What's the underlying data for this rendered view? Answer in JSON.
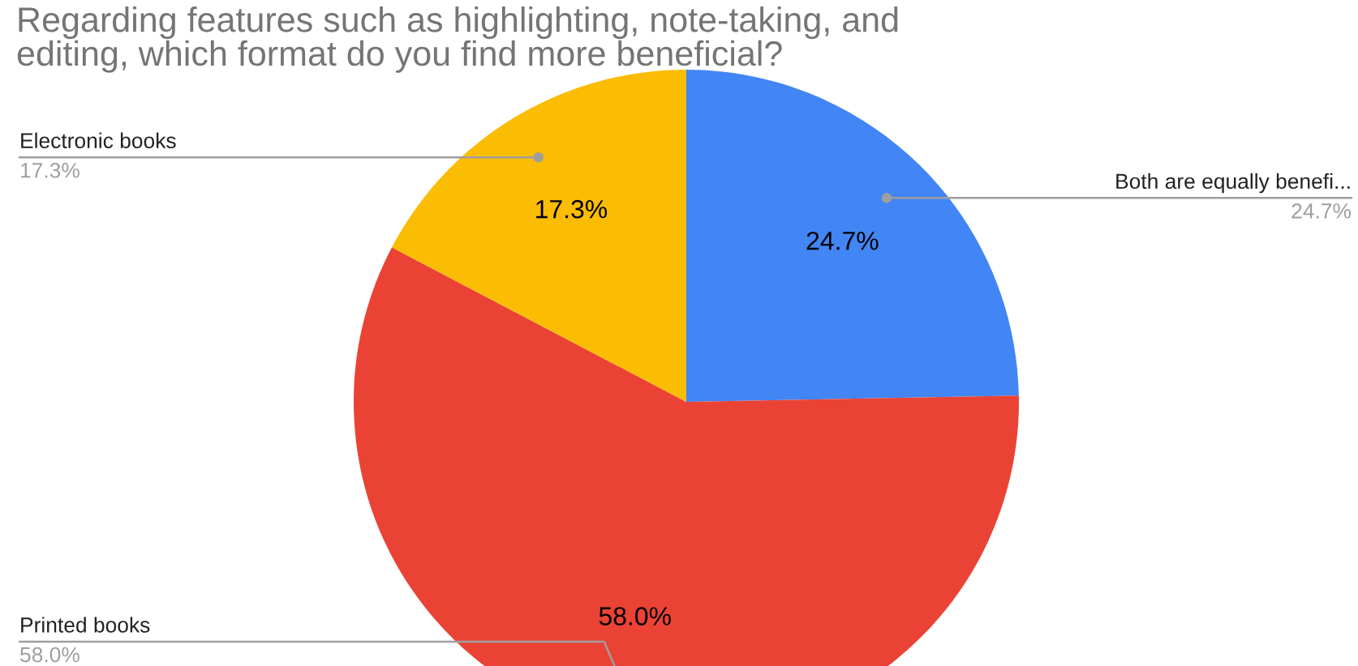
{
  "chart_data": {
    "type": "pie",
    "title": "Regarding features such as highlighting, note-taking, and\nediting, which format do you find more beneficial?",
    "categories": [
      "Both are equally benefi...",
      "Printed books",
      "Electronic books"
    ],
    "values": [
      24.7,
      58.0,
      17.3
    ],
    "colors": [
      "#4285f4",
      "#ea4335",
      "#fbbc04"
    ],
    "value_labels": [
      "24.7%",
      "58.0%",
      "17.3%"
    ]
  }
}
